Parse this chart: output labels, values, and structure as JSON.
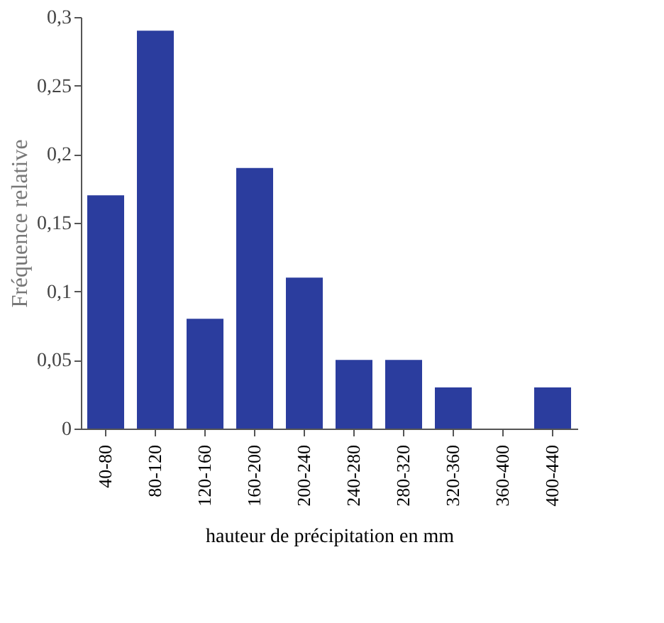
{
  "chart_data": {
    "type": "bar",
    "xlabel": "hauteur de précipitation en mm",
    "ylabel": "Fréquence relative",
    "categories": [
      "40-80",
      "80-120",
      "120-160",
      "160-200",
      "200-240",
      "240-280",
      "280-320",
      "320-360",
      "360-400",
      "400-440"
    ],
    "values": [
      0.17,
      0.29,
      0.08,
      0.19,
      0.11,
      0.05,
      0.05,
      0.03,
      0,
      0.03
    ],
    "color": "#2b3d9e",
    "ylim": [
      0,
      0.3
    ],
    "yticks": [
      {
        "value": 0,
        "label": "0"
      },
      {
        "value": 0.05,
        "label": "0,05"
      },
      {
        "value": 0.1,
        "label": "0,1"
      },
      {
        "value": 0.15,
        "label": "0,15"
      },
      {
        "value": 0.2,
        "label": "0,2"
      },
      {
        "value": 0.25,
        "label": "0,25"
      },
      {
        "value": 0.3,
        "label": "0,3"
      }
    ],
    "grid": false
  }
}
